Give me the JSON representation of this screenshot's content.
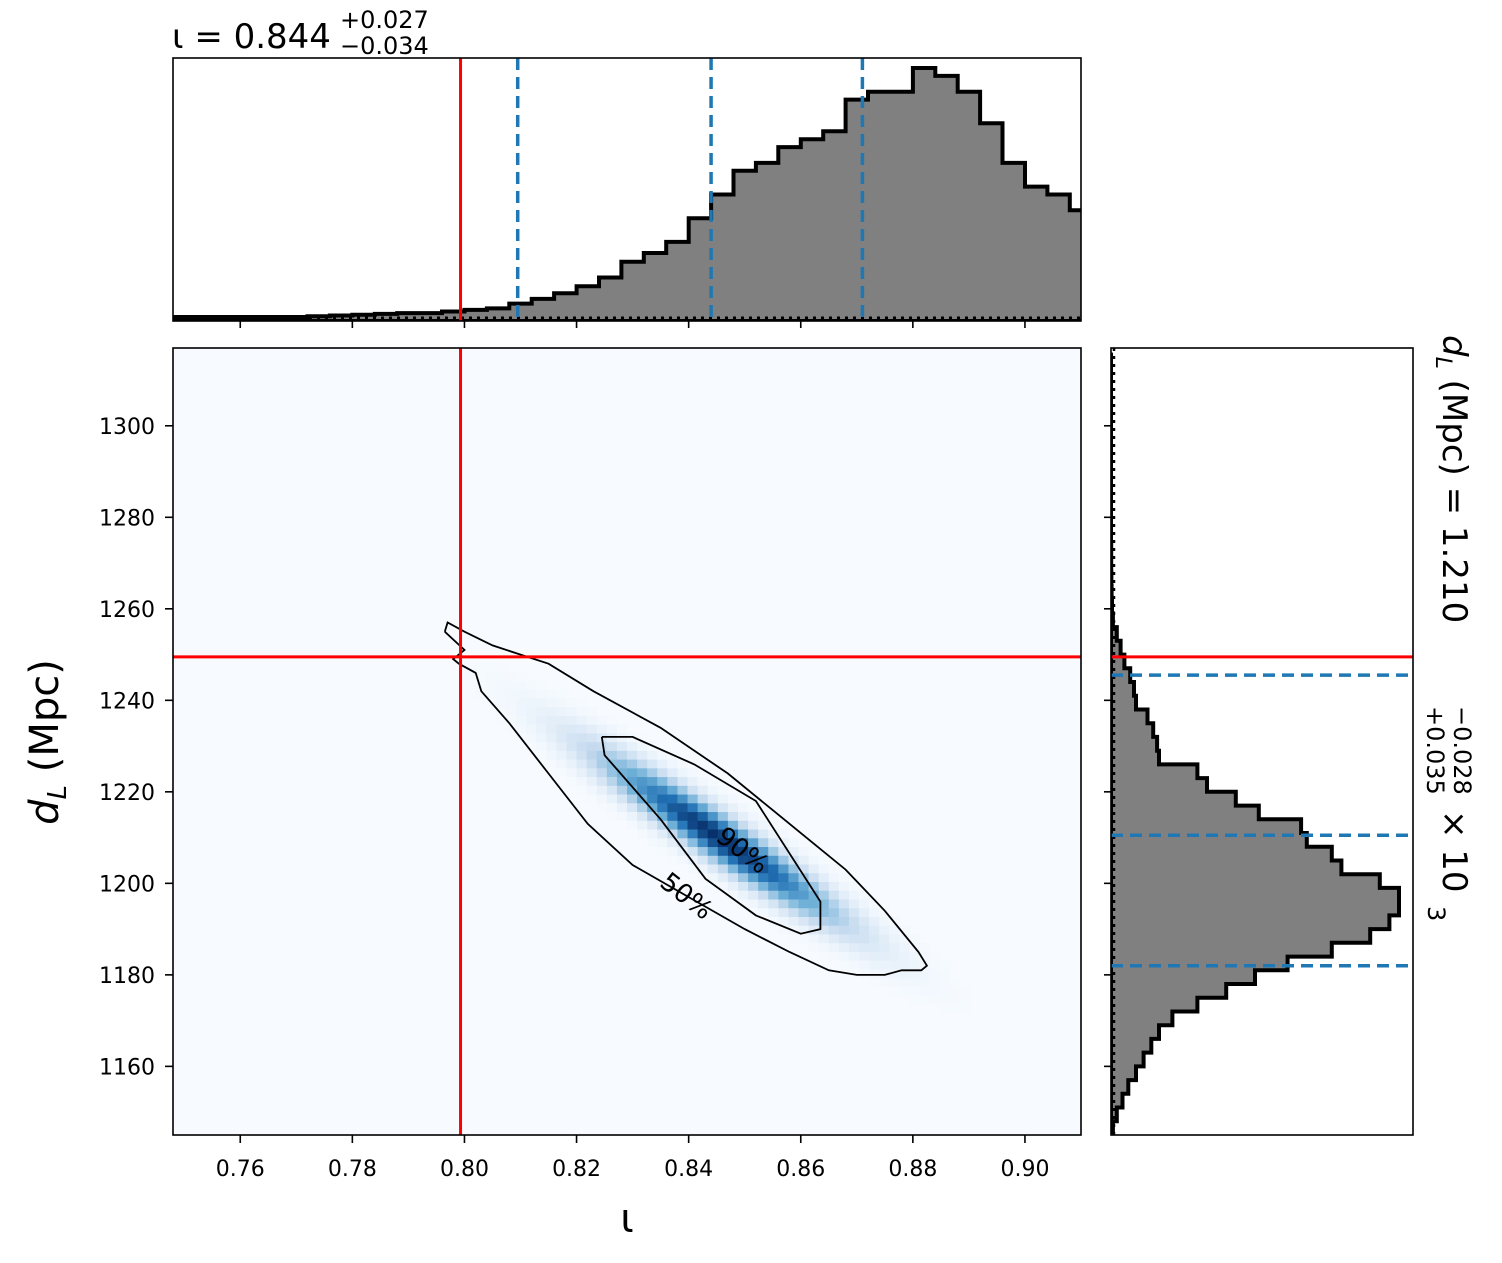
{
  "chart_data": {
    "type": "heatmap",
    "subtype": "corner-plot-2d-posterior-with-marginals",
    "colormap": "Blues",
    "x": {
      "label": "ι",
      "range": [
        0.748,
        0.91
      ],
      "ticks": [
        0.76,
        0.78,
        0.8,
        0.82,
        0.84,
        0.86,
        0.88,
        0.9
      ],
      "tick_labels": [
        "0.76",
        "0.78",
        "0.80",
        "0.82",
        "0.84",
        "0.86",
        "0.88",
        "0.90"
      ]
    },
    "y": {
      "label_main": "d",
      "label_sub": "L",
      "label_unit": " (Mpc)",
      "range": [
        1145,
        1317
      ],
      "ticks": [
        1160,
        1180,
        1200,
        1220,
        1240,
        1260,
        1280,
        1300
      ],
      "tick_labels": [
        "1160",
        "1180",
        "1200",
        "1220",
        "1240",
        "1260",
        "1280",
        "1300"
      ]
    },
    "top_title": {
      "prefix": "ι = 0.844",
      "sup": "+0.027",
      "sub": "−0.034"
    },
    "right_title": {
      "prefix": "d",
      "sub_L": "L",
      "mid": " (Mpc) = 1.210",
      "sup": "+0.035",
      "sub": "−0.028",
      "suffix": " × 10",
      "exp": "3"
    },
    "truth": {
      "x": 0.7993,
      "y": 1249.5,
      "color": "#ff0000"
    },
    "x_quantiles": [
      0.8095,
      0.844,
      0.871
    ],
    "y_quantiles": [
      1182,
      1210.5,
      1245.5
    ],
    "quantile_color": "#1f77b4",
    "posterior_ellipse": {
      "center_x": 0.8455,
      "center_y": 1210,
      "sigma_x": 0.0135,
      "sigma_y": 11.5,
      "correlation": -0.95
    },
    "contours": [
      {
        "label": "50%",
        "label_x": 0.8395,
        "label_y": 1197,
        "points": [
          [
            0.8245,
            1232
          ],
          [
            0.83,
            1232
          ],
          [
            0.841,
            1226
          ],
          [
            0.852,
            1218
          ],
          [
            0.8635,
            1196
          ],
          [
            0.8635,
            1190
          ],
          [
            0.86,
            1189
          ],
          [
            0.852,
            1193
          ],
          [
            0.843,
            1201
          ],
          [
            0.835,
            1214
          ],
          [
            0.825,
            1228
          ],
          [
            0.8245,
            1232
          ]
        ]
      },
      {
        "label": "90%",
        "label_x": 0.8495,
        "label_y": 1207,
        "points": [
          [
            0.7965,
            1255
          ],
          [
            0.797,
            1257
          ],
          [
            0.8,
            1255
          ],
          [
            0.805,
            1252
          ],
          [
            0.81,
            1250
          ],
          [
            0.815,
            1248
          ],
          [
            0.823,
            1242
          ],
          [
            0.835,
            1234
          ],
          [
            0.847,
            1224
          ],
          [
            0.855,
            1216
          ],
          [
            0.862,
            1209
          ],
          [
            0.868,
            1203
          ],
          [
            0.875,
            1194
          ],
          [
            0.881,
            1185
          ],
          [
            0.8825,
            1182
          ],
          [
            0.8815,
            1181
          ],
          [
            0.878,
            1181
          ],
          [
            0.875,
            1180
          ],
          [
            0.87,
            1180
          ],
          [
            0.865,
            1181
          ],
          [
            0.858,
            1185
          ],
          [
            0.85,
            1190
          ],
          [
            0.84,
            1197
          ],
          [
            0.83,
            1204
          ],
          [
            0.822,
            1213
          ],
          [
            0.815,
            1224
          ],
          [
            0.808,
            1235
          ],
          [
            0.803,
            1242
          ],
          [
            0.802,
            1246
          ],
          [
            0.799,
            1248
          ],
          [
            0.798,
            1249
          ],
          [
            0.8,
            1251
          ],
          [
            0.7965,
            1255
          ]
        ]
      }
    ],
    "hist_x": {
      "bin_start": 0.748,
      "bin_width": 0.004,
      "counts": [
        0.5,
        0.5,
        0.5,
        0.5,
        0.5,
        0.5,
        0.6,
        0.7,
        0.8,
        0.9,
        1,
        1,
        1.2,
        1.4,
        1.6,
        2.2,
        2.8,
        3.5,
        4.4,
        5.5,
        7.5,
        8.6,
        10,
        13,
        16,
        19,
        20,
        22,
        23,
        24,
        28,
        29,
        29,
        32,
        31,
        29,
        25,
        20,
        17,
        16,
        14,
        10,
        9,
        5,
        4,
        3,
        2.2,
        1.5,
        1,
        0.6,
        0.5,
        0.5,
        0.5,
        0.5,
        0.5,
        0.5,
        0.5,
        0.5,
        0.5
      ],
      "fill": "#808080",
      "edge": "#000000"
    },
    "hist_y": {
      "bin_start": 1145,
      "bin_width": 3,
      "counts": [
        0.1,
        0.3,
        0.6,
        0.9,
        1.3,
        1.7,
        2.1,
        2.5,
        3.2,
        4.5,
        6.0,
        7.5,
        9.2,
        11.5,
        13.5,
        14.5,
        15,
        15,
        14,
        12,
        11.5,
        10.2,
        9.9,
        7.7,
        6.5,
        5.0,
        4.5,
        2.5,
        2.4,
        2.2,
        1.9,
        1.3,
        1.2,
        1.0,
        0.7,
        0.5,
        0.3,
        0.1,
        0.05,
        0.03,
        0.02,
        0.01,
        0.01,
        0.0,
        0.0,
        0.0,
        0.0,
        0.0,
        0.0,
        0.0,
        0.0,
        0.0,
        0.0,
        0.0,
        0.0,
        0.0,
        0.0
      ],
      "fill": "#808080",
      "edge": "#000000"
    }
  }
}
